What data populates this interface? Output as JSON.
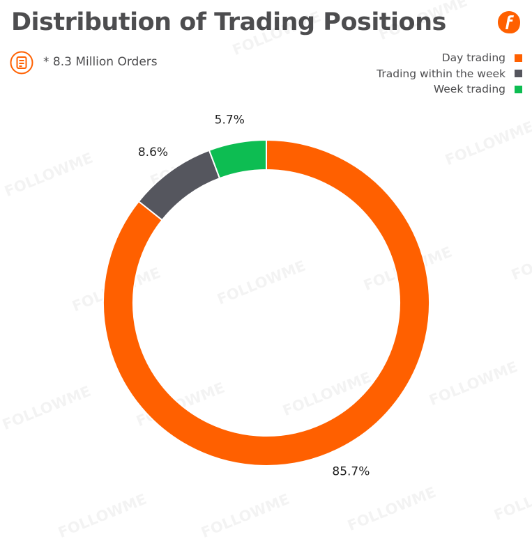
{
  "header": {
    "title": "Distribution of Trading Positions",
    "subtitle": "* 8.3 Million Orders",
    "logo_icon": "followme-f-logo-icon",
    "orders_icon": "document-list-icon"
  },
  "legend": {
    "placement": "top-right",
    "items": [
      {
        "label": "Day trading",
        "color": "#ff6000"
      },
      {
        "label": "Trading within the week",
        "color": "#55565e"
      },
      {
        "label": "Week trading",
        "color": "#0dbd52"
      }
    ]
  },
  "watermark": "FOLLOWME",
  "chart_data": {
    "type": "pie",
    "variant": "donut",
    "title": "Distribution of Trading Positions",
    "start": "12 o'clock, clockwise",
    "series": [
      {
        "name": "Day trading",
        "value": 85.7,
        "label": "85.7%",
        "color": "#ff6000"
      },
      {
        "name": "Trading within the week",
        "value": 8.6,
        "label": "8.6%",
        "color": "#55565e"
      },
      {
        "name": "Week trading",
        "value": 5.7,
        "label": "5.7%",
        "color": "#0dbd52"
      }
    ]
  }
}
